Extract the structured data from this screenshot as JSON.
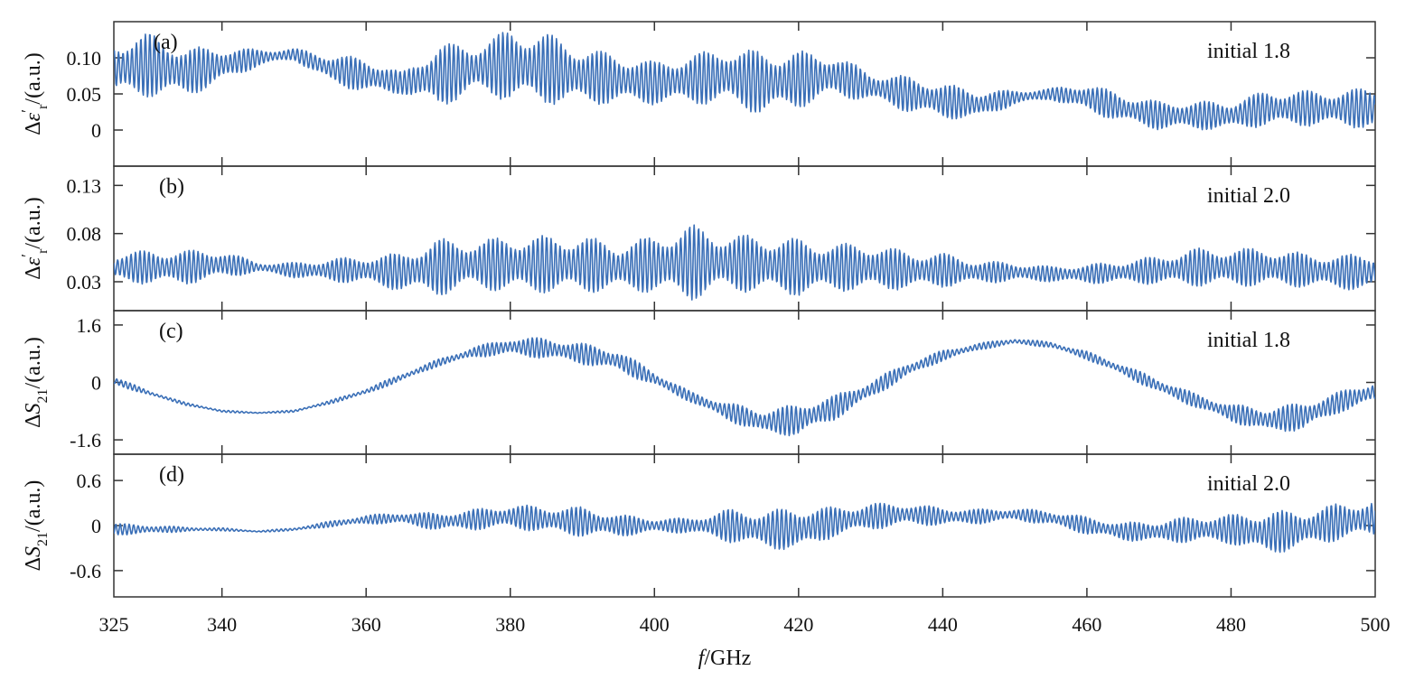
{
  "chart_data": [
    {
      "type": "line",
      "panel_label": "(a)",
      "annotation": "initial 1.8",
      "ylabel": "Δε′r/(a.u.)",
      "ylabel_parts": {
        "prefix": "Δ",
        "symbol": "ε",
        "prime": "′",
        "subscript": "r",
        "suffix": "/(a.u.)"
      },
      "ylim": [
        -0.05,
        0.15
      ],
      "yticks": [
        0,
        0.05,
        0.1
      ],
      "ytick_labels": [
        "0",
        "0.05",
        "0.10"
      ],
      "series": [
        {
          "values": [
            {
              "f": 325,
              "y": 0.085,
              "a": 0.04
            },
            {
              "f": 330,
              "y": 0.09,
              "a": 0.045
            },
            {
              "f": 335,
              "y": 0.08,
              "a": 0.035
            },
            {
              "f": 340,
              "y": 0.09,
              "a": 0.025
            },
            {
              "f": 345,
              "y": 0.1,
              "a": 0.012
            },
            {
              "f": 350,
              "y": 0.105,
              "a": 0.008
            },
            {
              "f": 355,
              "y": 0.085,
              "a": 0.02
            },
            {
              "f": 360,
              "y": 0.075,
              "a": 0.025
            },
            {
              "f": 365,
              "y": 0.065,
              "a": 0.015
            },
            {
              "f": 370,
              "y": 0.075,
              "a": 0.045
            },
            {
              "f": 375,
              "y": 0.085,
              "a": 0.035
            },
            {
              "f": 380,
              "y": 0.09,
              "a": 0.05
            },
            {
              "f": 385,
              "y": 0.085,
              "a": 0.05
            },
            {
              "f": 390,
              "y": 0.075,
              "a": 0.04
            },
            {
              "f": 395,
              "y": 0.07,
              "a": 0.035
            },
            {
              "f": 400,
              "y": 0.065,
              "a": 0.03
            },
            {
              "f": 405,
              "y": 0.07,
              "a": 0.035
            },
            {
              "f": 410,
              "y": 0.075,
              "a": 0.04
            },
            {
              "f": 415,
              "y": 0.065,
              "a": 0.045
            },
            {
              "f": 420,
              "y": 0.07,
              "a": 0.04
            },
            {
              "f": 425,
              "y": 0.075,
              "a": 0.03
            },
            {
              "f": 430,
              "y": 0.06,
              "a": 0.02
            },
            {
              "f": 435,
              "y": 0.05,
              "a": 0.025
            },
            {
              "f": 440,
              "y": 0.04,
              "a": 0.025
            },
            {
              "f": 445,
              "y": 0.035,
              "a": 0.02
            },
            {
              "f": 450,
              "y": 0.045,
              "a": 0.01
            },
            {
              "f": 455,
              "y": 0.05,
              "a": 0.008
            },
            {
              "f": 460,
              "y": 0.045,
              "a": 0.02
            },
            {
              "f": 465,
              "y": 0.03,
              "a": 0.02
            },
            {
              "f": 470,
              "y": 0.02,
              "a": 0.02
            },
            {
              "f": 475,
              "y": 0.02,
              "a": 0.02
            },
            {
              "f": 480,
              "y": 0.02,
              "a": 0.02
            },
            {
              "f": 485,
              "y": 0.03,
              "a": 0.025
            },
            {
              "f": 490,
              "y": 0.03,
              "a": 0.025
            },
            {
              "f": 495,
              "y": 0.03,
              "a": 0.025
            },
            {
              "f": 500,
              "y": 0.03,
              "a": 0.03
            }
          ]
        }
      ]
    },
    {
      "type": "line",
      "panel_label": "(b)",
      "annotation": "initial 2.0",
      "ylabel": "Δε′r/(a.u.)",
      "ylabel_parts": {
        "prefix": "Δ",
        "symbol": "ε",
        "prime": "′",
        "subscript": "r",
        "suffix": "/(a.u.)"
      },
      "ylim": [
        0.0,
        0.15
      ],
      "yticks": [
        0.03,
        0.08,
        0.13
      ],
      "ytick_labels": [
        "0.03",
        "0.08",
        "0.13"
      ],
      "series": [
        {
          "values": [
            {
              "f": 325,
              "y": 0.045,
              "a": 0.015
            },
            {
              "f": 330,
              "y": 0.045,
              "a": 0.018
            },
            {
              "f": 335,
              "y": 0.045,
              "a": 0.018
            },
            {
              "f": 340,
              "y": 0.048,
              "a": 0.015
            },
            {
              "f": 345,
              "y": 0.045,
              "a": 0.005
            },
            {
              "f": 350,
              "y": 0.042,
              "a": 0.008
            },
            {
              "f": 355,
              "y": 0.042,
              "a": 0.012
            },
            {
              "f": 360,
              "y": 0.042,
              "a": 0.015
            },
            {
              "f": 365,
              "y": 0.04,
              "a": 0.02
            },
            {
              "f": 370,
              "y": 0.045,
              "a": 0.03
            },
            {
              "f": 375,
              "y": 0.048,
              "a": 0.025
            },
            {
              "f": 380,
              "y": 0.048,
              "a": 0.03
            },
            {
              "f": 385,
              "y": 0.048,
              "a": 0.03
            },
            {
              "f": 390,
              "y": 0.048,
              "a": 0.03
            },
            {
              "f": 395,
              "y": 0.045,
              "a": 0.025
            },
            {
              "f": 400,
              "y": 0.048,
              "a": 0.03
            },
            {
              "f": 405,
              "y": 0.05,
              "a": 0.04
            },
            {
              "f": 410,
              "y": 0.05,
              "a": 0.03
            },
            {
              "f": 415,
              "y": 0.048,
              "a": 0.03
            },
            {
              "f": 420,
              "y": 0.045,
              "a": 0.03
            },
            {
              "f": 425,
              "y": 0.045,
              "a": 0.025
            },
            {
              "f": 430,
              "y": 0.045,
              "a": 0.025
            },
            {
              "f": 435,
              "y": 0.042,
              "a": 0.02
            },
            {
              "f": 440,
              "y": 0.042,
              "a": 0.018
            },
            {
              "f": 445,
              "y": 0.04,
              "a": 0.012
            },
            {
              "f": 450,
              "y": 0.04,
              "a": 0.01
            },
            {
              "f": 455,
              "y": 0.038,
              "a": 0.008
            },
            {
              "f": 460,
              "y": 0.038,
              "a": 0.01
            },
            {
              "f": 465,
              "y": 0.04,
              "a": 0.012
            },
            {
              "f": 470,
              "y": 0.042,
              "a": 0.015
            },
            {
              "f": 475,
              "y": 0.045,
              "a": 0.02
            },
            {
              "f": 480,
              "y": 0.045,
              "a": 0.02
            },
            {
              "f": 485,
              "y": 0.045,
              "a": 0.02
            },
            {
              "f": 490,
              "y": 0.042,
              "a": 0.018
            },
            {
              "f": 495,
              "y": 0.04,
              "a": 0.018
            },
            {
              "f": 500,
              "y": 0.04,
              "a": 0.02
            }
          ]
        }
      ]
    },
    {
      "type": "line",
      "panel_label": "(c)",
      "annotation": "initial 1.8",
      "ylabel": "ΔS21/(a.u.)",
      "ylabel_parts": {
        "prefix": "Δ",
        "symbol": "S",
        "prime": "",
        "subscript": "21",
        "suffix": "/(a.u.)"
      },
      "ylim": [
        -2.0,
        2.0
      ],
      "yticks": [
        -1.6,
        0,
        1.6
      ],
      "ytick_labels": [
        "-1.6",
        "0",
        "1.6"
      ],
      "series": [
        {
          "values": [
            {
              "f": 325,
              "y": 0.05,
              "a": 0.12
            },
            {
              "f": 330,
              "y": -0.3,
              "a": 0.06
            },
            {
              "f": 335,
              "y": -0.6,
              "a": 0.04
            },
            {
              "f": 340,
              "y": -0.8,
              "a": 0.03
            },
            {
              "f": 345,
              "y": -0.85,
              "a": 0.02
            },
            {
              "f": 350,
              "y": -0.8,
              "a": 0.03
            },
            {
              "f": 355,
              "y": -0.55,
              "a": 0.05
            },
            {
              "f": 360,
              "y": -0.25,
              "a": 0.08
            },
            {
              "f": 365,
              "y": 0.15,
              "a": 0.1
            },
            {
              "f": 370,
              "y": 0.55,
              "a": 0.1
            },
            {
              "f": 375,
              "y": 0.85,
              "a": 0.15
            },
            {
              "f": 380,
              "y": 1.0,
              "a": 0.25
            },
            {
              "f": 385,
              "y": 0.95,
              "a": 0.3
            },
            {
              "f": 390,
              "y": 0.8,
              "a": 0.3
            },
            {
              "f": 395,
              "y": 0.6,
              "a": 0.3
            },
            {
              "f": 400,
              "y": 0.1,
              "a": 0.2
            },
            {
              "f": 405,
              "y": -0.4,
              "a": 0.15
            },
            {
              "f": 410,
              "y": -0.8,
              "a": 0.25
            },
            {
              "f": 415,
              "y": -1.1,
              "a": 0.35
            },
            {
              "f": 420,
              "y": -1.05,
              "a": 0.45
            },
            {
              "f": 425,
              "y": -0.7,
              "a": 0.35
            },
            {
              "f": 430,
              "y": -0.2,
              "a": 0.25
            },
            {
              "f": 435,
              "y": 0.35,
              "a": 0.2
            },
            {
              "f": 440,
              "y": 0.75,
              "a": 0.15
            },
            {
              "f": 445,
              "y": 1.0,
              "a": 0.1
            },
            {
              "f": 450,
              "y": 1.15,
              "a": 0.08
            },
            {
              "f": 455,
              "y": 1.05,
              "a": 0.08
            },
            {
              "f": 460,
              "y": 0.75,
              "a": 0.12
            },
            {
              "f": 465,
              "y": 0.35,
              "a": 0.15
            },
            {
              "f": 470,
              "y": -0.1,
              "a": 0.2
            },
            {
              "f": 475,
              "y": -0.5,
              "a": 0.2
            },
            {
              "f": 480,
              "y": -0.85,
              "a": 0.25
            },
            {
              "f": 485,
              "y": -1.05,
              "a": 0.35
            },
            {
              "f": 490,
              "y": -0.95,
              "a": 0.4
            },
            {
              "f": 495,
              "y": -0.55,
              "a": 0.3
            },
            {
              "f": 500,
              "y": -0.25,
              "a": 0.3
            }
          ]
        }
      ]
    },
    {
      "type": "line",
      "panel_label": "(d)",
      "annotation": "initial 2.0",
      "ylabel": "ΔS21/(a.u.)",
      "ylabel_parts": {
        "prefix": "Δ",
        "symbol": "S",
        "prime": "",
        "subscript": "21",
        "suffix": "/(a.u.)"
      },
      "ylim": [
        -0.95,
        0.95
      ],
      "yticks": [
        -0.6,
        0,
        0.6
      ],
      "ytick_labels": [
        "-0.6",
        "0",
        "0.6"
      ],
      "series": [
        {
          "values": [
            {
              "f": 325,
              "y": -0.05,
              "a": 0.08
            },
            {
              "f": 330,
              "y": -0.05,
              "a": 0.06
            },
            {
              "f": 335,
              "y": -0.05,
              "a": 0.03
            },
            {
              "f": 340,
              "y": -0.05,
              "a": 0.02
            },
            {
              "f": 345,
              "y": -0.08,
              "a": 0.01
            },
            {
              "f": 350,
              "y": -0.05,
              "a": 0.02
            },
            {
              "f": 355,
              "y": 0.02,
              "a": 0.04
            },
            {
              "f": 360,
              "y": 0.08,
              "a": 0.06
            },
            {
              "f": 365,
              "y": 0.1,
              "a": 0.08
            },
            {
              "f": 370,
              "y": 0.05,
              "a": 0.12
            },
            {
              "f": 375,
              "y": 0.08,
              "a": 0.14
            },
            {
              "f": 380,
              "y": 0.12,
              "a": 0.16
            },
            {
              "f": 385,
              "y": 0.08,
              "a": 0.18
            },
            {
              "f": 390,
              "y": 0.05,
              "a": 0.2
            },
            {
              "f": 395,
              "y": 0.0,
              "a": 0.15
            },
            {
              "f": 400,
              "y": 0.0,
              "a": 0.1
            },
            {
              "f": 405,
              "y": 0.0,
              "a": 0.1
            },
            {
              "f": 410,
              "y": 0.0,
              "a": 0.22
            },
            {
              "f": 415,
              "y": -0.05,
              "a": 0.25
            },
            {
              "f": 420,
              "y": -0.05,
              "a": 0.3
            },
            {
              "f": 425,
              "y": 0.05,
              "a": 0.2
            },
            {
              "f": 430,
              "y": 0.12,
              "a": 0.18
            },
            {
              "f": 435,
              "y": 0.15,
              "a": 0.15
            },
            {
              "f": 440,
              "y": 0.12,
              "a": 0.12
            },
            {
              "f": 445,
              "y": 0.12,
              "a": 0.1
            },
            {
              "f": 450,
              "y": 0.15,
              "a": 0.08
            },
            {
              "f": 455,
              "y": 0.1,
              "a": 0.1
            },
            {
              "f": 460,
              "y": 0.0,
              "a": 0.12
            },
            {
              "f": 465,
              "y": -0.08,
              "a": 0.12
            },
            {
              "f": 470,
              "y": -0.08,
              "a": 0.15
            },
            {
              "f": 475,
              "y": -0.05,
              "a": 0.18
            },
            {
              "f": 480,
              "y": -0.05,
              "a": 0.2
            },
            {
              "f": 485,
              "y": -0.1,
              "a": 0.3
            },
            {
              "f": 490,
              "y": -0.05,
              "a": 0.25
            },
            {
              "f": 495,
              "y": 0.05,
              "a": 0.25
            },
            {
              "f": 500,
              "y": 0.1,
              "a": 0.25
            }
          ]
        }
      ]
    }
  ],
  "shared_x": {
    "xlabel_italic": "f",
    "xlabel_rest": "/GHz",
    "xlim": [
      325,
      500
    ],
    "xticks": [
      325,
      340,
      360,
      380,
      400,
      420,
      440,
      460,
      480,
      500
    ],
    "xtick_labels": [
      "325",
      "340",
      "360",
      "380",
      "400",
      "420",
      "440",
      "460",
      "480",
      "500"
    ]
  },
  "colors": {
    "line": "#3a6fb7",
    "axis": "#333333"
  }
}
